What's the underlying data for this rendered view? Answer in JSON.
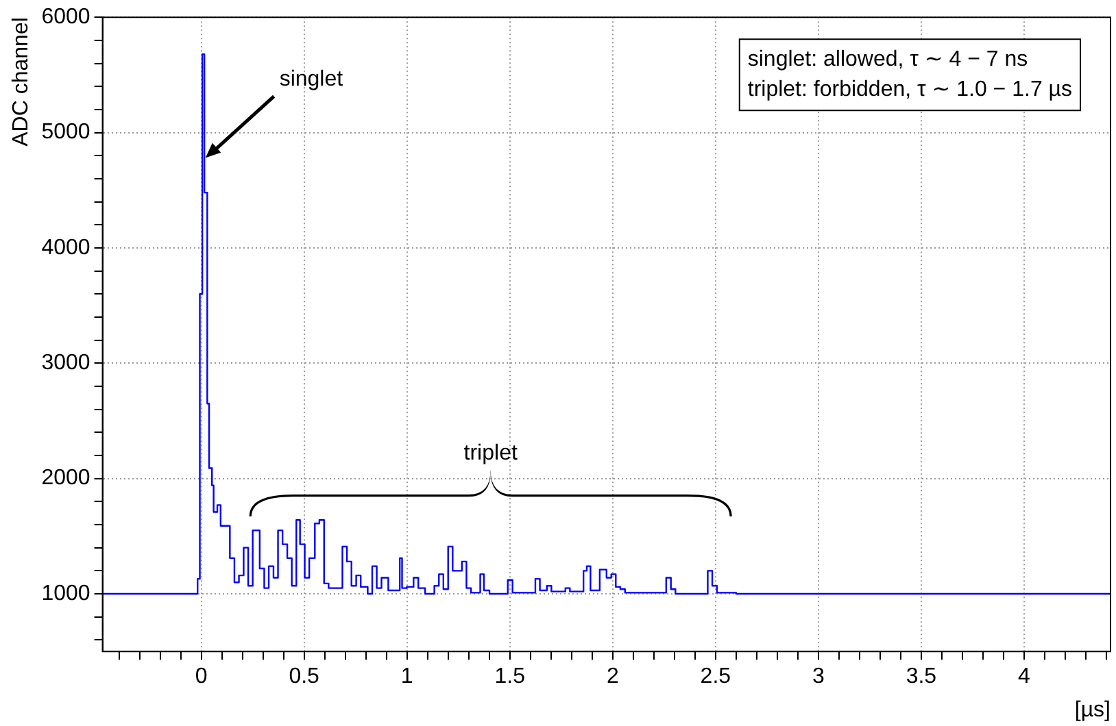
{
  "chart_data": {
    "type": "step",
    "xlabel": "[µs]",
    "ylabel": "ADC channel",
    "xlim": [
      -0.48,
      4.42
    ],
    "ylim": [
      500,
      6000
    ],
    "xticks": [
      {
        "value": -0.4,
        "label": null
      },
      {
        "value": -0.3,
        "label": null
      },
      {
        "value": -0.2,
        "label": null
      },
      {
        "value": -0.1,
        "label": null
      },
      0,
      {
        "value": 0.1,
        "label": null
      },
      {
        "value": 0.2,
        "label": null
      },
      {
        "value": 0.3,
        "label": null
      },
      {
        "value": 0.4,
        "label": null
      },
      0.5,
      {
        "value": 0.6,
        "label": null
      },
      {
        "value": 0.7,
        "label": null
      },
      {
        "value": 0.8,
        "label": null
      },
      {
        "value": 0.9,
        "label": null
      },
      1,
      {
        "value": 1.1,
        "label": null
      },
      {
        "value": 1.2,
        "label": null
      },
      {
        "value": 1.3,
        "label": null
      },
      {
        "value": 1.4,
        "label": null
      },
      1.5,
      {
        "value": 1.6,
        "label": null
      },
      {
        "value": 1.7,
        "label": null
      },
      {
        "value": 1.8,
        "label": null
      },
      {
        "value": 1.9,
        "label": null
      },
      2,
      {
        "value": 2.1,
        "label": null
      },
      {
        "value": 2.2,
        "label": null
      },
      {
        "value": 2.3,
        "label": null
      },
      {
        "value": 2.4,
        "label": null
      },
      2.5,
      {
        "value": 2.6,
        "label": null
      },
      {
        "value": 2.7,
        "label": null
      },
      {
        "value": 2.8,
        "label": null
      },
      {
        "value": 2.9,
        "label": null
      },
      3,
      {
        "value": 3.1,
        "label": null
      },
      {
        "value": 3.2,
        "label": null
      },
      {
        "value": 3.3,
        "label": null
      },
      {
        "value": 3.4,
        "label": null
      },
      3.5,
      {
        "value": 3.6,
        "label": null
      },
      {
        "value": 3.7,
        "label": null
      },
      {
        "value": 3.8,
        "label": null
      },
      {
        "value": 3.9,
        "label": null
      },
      4,
      {
        "value": 4.1,
        "label": null
      },
      {
        "value": 4.2,
        "label": null
      },
      {
        "value": 4.3,
        "label": null
      },
      {
        "value": 4.4,
        "label": null
      }
    ],
    "yticks": [
      {
        "value": 600,
        "label": null
      },
      {
        "value": 800,
        "label": null
      },
      1000,
      {
        "value": 1200,
        "label": null
      },
      {
        "value": 1400,
        "label": null
      },
      {
        "value": 1600,
        "label": null
      },
      {
        "value": 1800,
        "label": null
      },
      2000,
      {
        "value": 2200,
        "label": null
      },
      {
        "value": 2400,
        "label": null
      },
      {
        "value": 2600,
        "label": null
      },
      {
        "value": 2800,
        "label": null
      },
      3000,
      {
        "value": 3200,
        "label": null
      },
      {
        "value": 3400,
        "label": null
      },
      {
        "value": 3600,
        "label": null
      },
      {
        "value": 3800,
        "label": null
      },
      4000,
      {
        "value": 4200,
        "label": null
      },
      {
        "value": 4400,
        "label": null
      },
      {
        "value": 4600,
        "label": null
      },
      {
        "value": 4800,
        "label": null
      },
      5000,
      {
        "value": 5200,
        "label": null
      },
      {
        "value": 5400,
        "label": null
      },
      {
        "value": 5600,
        "label": null
      },
      {
        "value": 5800,
        "label": null
      },
      6000
    ],
    "grid": true,
    "legend": false,
    "marker": "none",
    "line_style": "solid",
    "annotations": [
      "singlet: allowed, τ ∼ 4 − 7 ns",
      "triplet: forbidden, τ ∼ 1.0 − 1.7 µs",
      {
        "text": "singlet",
        "x": 0.02,
        "y": 4780
      },
      "triplet"
    ],
    "series": [
      {
        "color": "#0000ff",
        "x": [
          -0.48,
          -0.018,
          -0.007,
          0.005,
          0.015,
          0.029,
          0.038,
          0.052,
          0.06,
          0.078,
          0.094,
          0.139,
          0.161,
          0.183,
          0.206,
          0.228,
          0.25,
          0.284,
          0.306,
          0.328,
          0.351,
          0.373,
          0.395,
          0.418,
          0.44,
          0.462,
          0.48,
          0.503,
          0.525,
          0.552,
          0.574,
          0.597,
          0.619,
          0.686,
          0.708,
          0.73,
          0.753,
          0.775,
          0.809,
          0.831,
          0.853,
          0.876,
          0.909,
          0.965,
          0.976,
          0.999,
          1.032,
          1.055,
          1.088,
          1.133,
          1.155,
          1.177,
          1.2,
          1.222,
          1.267,
          1.289,
          1.311,
          1.356,
          1.374,
          1.401,
          1.49,
          1.513,
          1.624,
          1.646,
          1.68,
          1.702,
          1.77,
          1.792,
          1.858,
          1.874,
          1.892,
          1.937,
          1.97,
          1.993,
          2.015,
          2.037,
          2.06,
          2.26,
          2.283,
          2.305,
          2.462,
          2.484,
          2.507,
          2.6,
          4.42
        ],
        "values": [
          1000,
          1130,
          3600,
          5680,
          4480,
          2650,
          2090,
          1940,
          1710,
          1770,
          1590,
          1310,
          1100,
          1160,
          1400,
          1070,
          1550,
          1220,
          1050,
          1240,
          1140,
          1550,
          1430,
          1310,
          1070,
          1640,
          1430,
          1140,
          1310,
          1610,
          1640,
          1090,
          1050,
          1410,
          1280,
          1070,
          1160,
          1060,
          1000,
          1240,
          1050,
          1140,
          1030,
          1310,
          1050,
          1060,
          1140,
          1050,
          1000,
          1070,
          1170,
          1040,
          1410,
          1200,
          1280,
          1050,
          1010,
          1170,
          1030,
          1000,
          1120,
          1010,
          1130,
          1030,
          1070,
          1020,
          1050,
          1020,
          1200,
          1240,
          1030,
          1210,
          1140,
          1170,
          1060,
          1040,
          1010,
          1140,
          1040,
          1000,
          1200,
          1070,
          1010,
          1000,
          1000
        ]
      }
    ]
  }
}
